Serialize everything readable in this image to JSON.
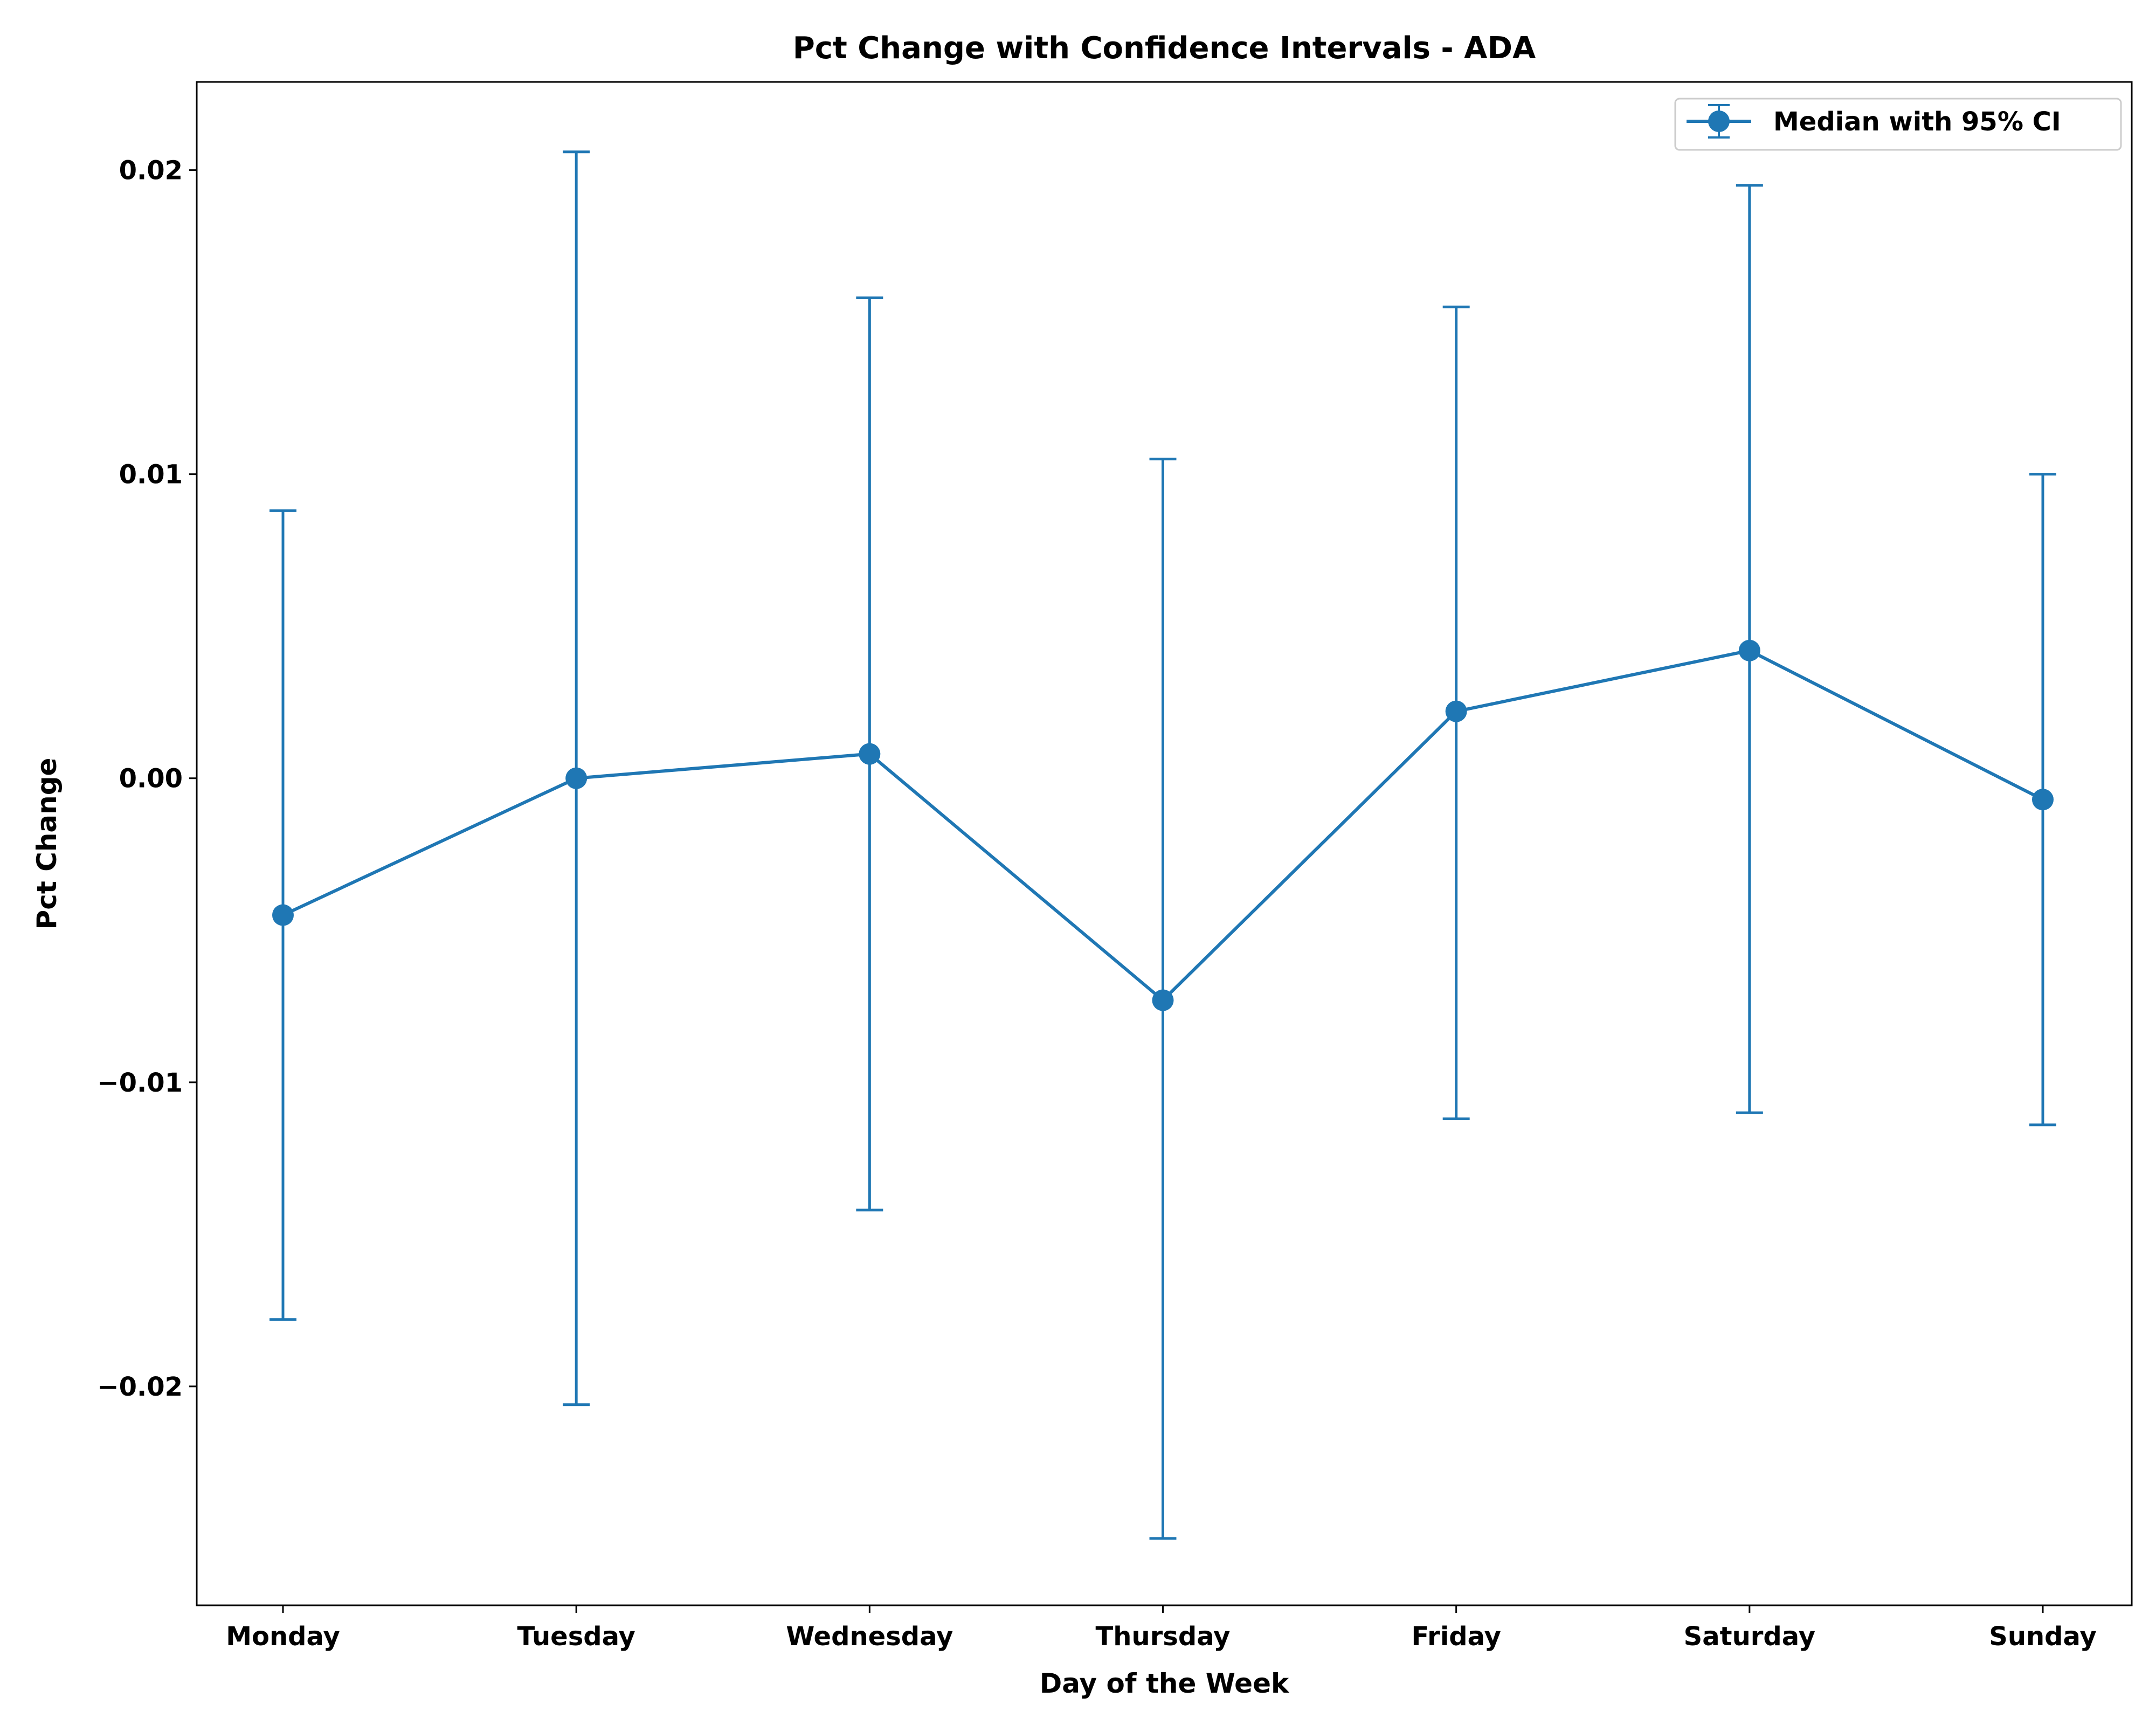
{
  "chart_data": {
    "type": "line",
    "title": "Pct Change with Confidence Intervals - ADA",
    "xlabel": "Day of the Week",
    "ylabel": "Pct Change",
    "categories": [
      "Monday",
      "Tuesday",
      "Wednesday",
      "Thursday",
      "Friday",
      "Saturday",
      "Sunday"
    ],
    "series": [
      {
        "name": "Median with 95% CI",
        "values": [
          -0.0045,
          0.0,
          0.0008,
          -0.0073,
          0.0022,
          0.0042,
          -0.0007
        ],
        "ci_lower": [
          -0.0178,
          -0.0206,
          -0.0142,
          -0.025,
          -0.0112,
          -0.011,
          -0.0114
        ],
        "ci_upper": [
          0.0088,
          0.0206,
          0.0158,
          0.0105,
          0.0155,
          0.0195,
          0.01
        ],
        "color": "#1f77b4"
      }
    ],
    "ylim": [
      -0.0272,
      0.0229
    ],
    "yticks": [
      -0.02,
      -0.01,
      0.0,
      0.01,
      0.02
    ],
    "ytick_labels": [
      "−0.02",
      "−0.01",
      "0.00",
      "0.01",
      "0.02"
    ],
    "grid": false,
    "legend_position": "top-right"
  }
}
